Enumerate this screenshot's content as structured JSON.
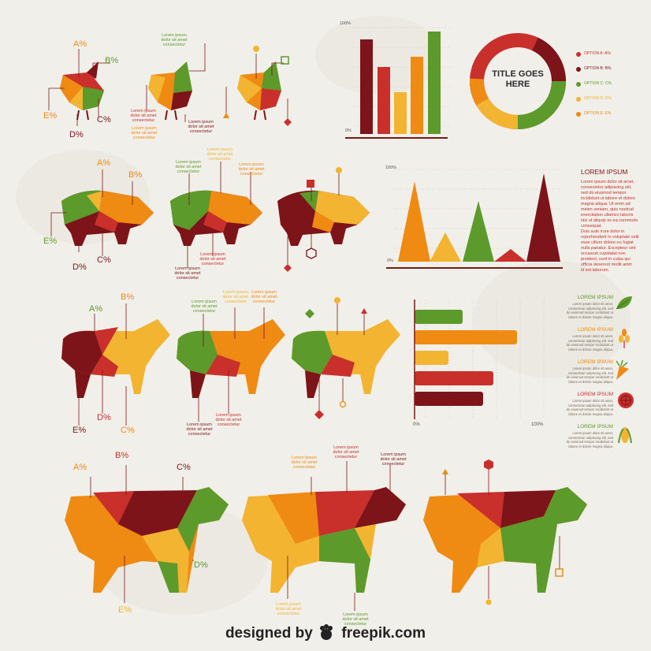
{
  "colors": {
    "dark_red": "#7d1419",
    "red": "#c9302c",
    "orange": "#ef8a12",
    "yellow": "#f2b431",
    "green": "#5c9a2c",
    "line": "#7a1a14"
  },
  "percent_labels": {
    "a": "A%",
    "b": "B%",
    "c": "C%",
    "d": "D%",
    "e": "E%"
  },
  "lorem_short": {
    "l1": "Lorem ipsum",
    "l2": "dolor sit amet",
    "l3": "consectetur"
  },
  "bar_chart": {
    "top_label": "100%",
    "bottom_label": "0%"
  },
  "triangle_chart": {
    "top_label": "100%",
    "bottom_label": "0%"
  },
  "hbar_chart": {
    "left_label": "0%",
    "right_label": "100%"
  },
  "donut": {
    "title_l1": "TITLE GOES",
    "title_l2": "HERE"
  },
  "donut_legend": [
    {
      "label": "OPTION A: A%",
      "color": "#c9302c"
    },
    {
      "label": "OPTION B: B%",
      "color": "#7d1419"
    },
    {
      "label": "OPTION C: C%",
      "color": "#5c9a2c"
    },
    {
      "label": "OPTION D: D%",
      "color": "#f2b431"
    },
    {
      "label": "OPTION E: E%",
      "color": "#ef8a12"
    }
  ],
  "side_text": {
    "title": "LOREM IPSUM",
    "para1": [
      "Lorem ipsum dolor sit amet,",
      "consectetur adipiscing elit,",
      "sed do eiusmod tempor",
      "incididunt ut labore et dolore",
      "magna aliqua. Ut enim ad",
      "minim veniam, quis nostrud",
      "exercitation ullamco laboris",
      "nisi ut aliquip ex ea commodo",
      "consequat."
    ],
    "para2": [
      "Duis aute irure dolor in",
      "reprehenderit in voluptate velit",
      "esse cillum dolore eu fugiat",
      "nulla pariatur. Excepteur sint",
      "occaecat cupidatat non",
      "proident, sunt in culpa qui",
      "officia deserunt mollit anim",
      "id est laborum."
    ]
  },
  "food_items": [
    {
      "title": "LOREM IPSUM",
      "color": "#5c9a2c",
      "icon": "leaf-icon"
    },
    {
      "title": "LOREM IPSUM",
      "color": "#ef8a12",
      "icon": "wheat-icon"
    },
    {
      "title": "LOREM IPSUM",
      "color": "#ef8a12",
      "icon": "carrot-icon"
    },
    {
      "title": "LOREM IPSUM",
      "color": "#c9302c",
      "icon": "tomato-icon"
    },
    {
      "title": "LOREM IPSUM",
      "color": "#5c9a2c",
      "icon": "corn-icon"
    }
  ],
  "food_lines": [
    "Lorem ipsum dolor sit amet,",
    "consectetur adipiscing elit, sed",
    "do eiusmod tempor incididunt ut",
    "labore et dolore magna aliqua."
  ],
  "footer": {
    "designed": "designed by",
    "brand": "freepik.com"
  }
}
